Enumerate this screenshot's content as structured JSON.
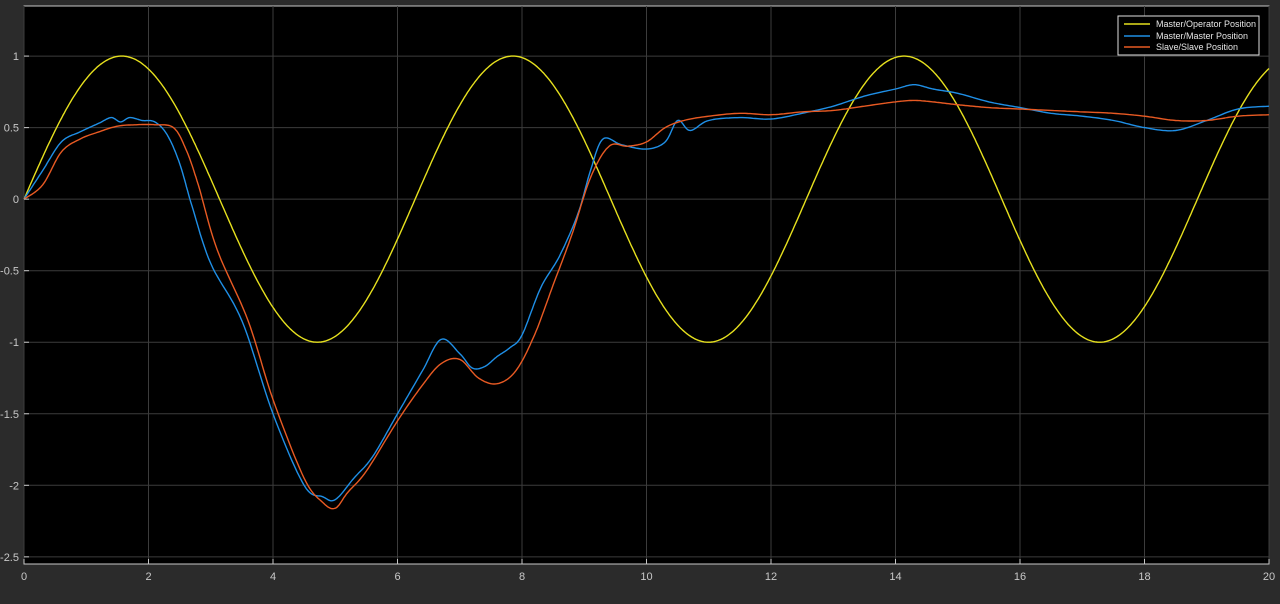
{
  "colors": {
    "background": "#2b2b2b",
    "plot_bg": "#000000",
    "grid": "#3c3c3c",
    "axis": "#c8c8c8",
    "legend_bg": "#000000",
    "legend_border": "#e0e0e0"
  },
  "chart_data": {
    "type": "line",
    "title": "",
    "xlabel": "",
    "ylabel": "",
    "xlim": [
      0,
      20
    ],
    "ylim": [
      -2.55,
      1.35
    ],
    "grid": true,
    "legend_position": "top-right",
    "xticks": [
      0,
      2,
      4,
      6,
      8,
      10,
      12,
      14,
      16,
      18,
      20
    ],
    "yticks": [
      -2.5,
      -2,
      -1.5,
      -1,
      -0.5,
      0,
      0.5,
      1
    ],
    "xtick_labels": [
      "0",
      "2",
      "4",
      "6",
      "8",
      "10",
      "12",
      "14",
      "16",
      "18",
      "20"
    ],
    "ytick_labels": [
      "-2.5",
      "-2",
      "-1.5",
      "-1",
      "-0.5",
      "0",
      "0.5",
      "1"
    ],
    "series": [
      {
        "name": "Master/Operator Position",
        "color": "#e6e01e",
        "function": "sin(t)",
        "x": [
          0,
          0.5,
          1,
          1.57,
          2,
          2.5,
          3,
          3.5,
          4,
          4.71,
          5.5,
          6,
          6.5,
          7,
          7.5,
          7.85,
          8.5,
          9,
          9.5,
          10,
          10.5,
          11,
          11.5,
          12,
          12.5,
          13,
          13.5,
          14.14,
          14.5,
          15,
          15.5,
          16,
          16.5,
          17.28,
          17.5,
          18,
          18.5,
          19,
          19.5,
          20
        ],
        "y": [
          0,
          0.48,
          0.84,
          1.0,
          0.91,
          0.6,
          0.14,
          -0.35,
          -0.76,
          -1.0,
          -0.71,
          -0.28,
          0.22,
          0.66,
          0.94,
          1.0,
          0.8,
          0.41,
          -0.08,
          -0.54,
          -0.88,
          -1.0,
          -0.88,
          -0.54,
          -0.07,
          0.42,
          0.8,
          1.0,
          0.93,
          0.65,
          0.2,
          -0.29,
          -0.71,
          -1.0,
          -0.98,
          -0.75,
          -0.34,
          0.15,
          0.6,
          0.91
        ]
      },
      {
        "name": "Master/Master Position",
        "color": "#1f8fe6",
        "x": [
          0,
          0.3,
          0.6,
          0.9,
          1.2,
          1.4,
          1.55,
          1.7,
          1.9,
          2.1,
          2.3,
          2.5,
          2.7,
          3.0,
          3.5,
          4.0,
          4.5,
          4.8,
          5.0,
          5.3,
          5.6,
          6.0,
          6.4,
          6.7,
          7.0,
          7.2,
          7.4,
          7.6,
          7.8,
          8.0,
          8.3,
          8.6,
          8.9,
          9.1,
          9.3,
          9.6,
          10.0,
          10.3,
          10.5,
          10.7,
          11.0,
          11.5,
          12.0,
          12.5,
          13.0,
          13.5,
          14.0,
          14.3,
          14.6,
          15.0,
          15.5,
          16.0,
          16.5,
          17.0,
          17.5,
          18.0,
          18.5,
          19.0,
          19.5,
          20.0
        ],
        "y": [
          0,
          0.2,
          0.4,
          0.47,
          0.53,
          0.57,
          0.54,
          0.57,
          0.55,
          0.54,
          0.45,
          0.25,
          -0.05,
          -0.45,
          -0.85,
          -1.5,
          -2.0,
          -2.08,
          -2.1,
          -1.95,
          -1.8,
          -1.5,
          -1.2,
          -0.98,
          -1.08,
          -1.18,
          -1.17,
          -1.1,
          -1.04,
          -0.95,
          -0.62,
          -0.4,
          -0.1,
          0.2,
          0.42,
          0.38,
          0.35,
          0.4,
          0.55,
          0.48,
          0.55,
          0.57,
          0.56,
          0.6,
          0.65,
          0.72,
          0.77,
          0.8,
          0.77,
          0.74,
          0.68,
          0.64,
          0.6,
          0.58,
          0.55,
          0.5,
          0.48,
          0.55,
          0.63,
          0.65
        ]
      },
      {
        "name": "Slave/Slave Position",
        "color": "#e85a23",
        "x": [
          0,
          0.3,
          0.6,
          0.9,
          1.2,
          1.5,
          1.8,
          2.1,
          2.4,
          2.6,
          2.8,
          3.1,
          3.6,
          4.0,
          4.5,
          4.8,
          5.0,
          5.2,
          5.5,
          6.0,
          6.4,
          6.7,
          7.0,
          7.3,
          7.6,
          7.9,
          8.2,
          8.5,
          8.8,
          9.1,
          9.4,
          9.7,
          10.0,
          10.3,
          10.6,
          11.0,
          11.5,
          12.0,
          12.5,
          13.0,
          13.5,
          14.0,
          14.3,
          14.6,
          15.0,
          15.5,
          16.0,
          16.5,
          17.0,
          17.5,
          18.0,
          18.5,
          19.0,
          19.5,
          20.0
        ],
        "y": [
          0,
          0.1,
          0.33,
          0.42,
          0.47,
          0.51,
          0.52,
          0.52,
          0.5,
          0.35,
          0.1,
          -0.35,
          -0.85,
          -1.4,
          -1.95,
          -2.12,
          -2.16,
          -2.05,
          -1.9,
          -1.55,
          -1.3,
          -1.15,
          -1.12,
          -1.25,
          -1.29,
          -1.2,
          -0.95,
          -0.6,
          -0.25,
          0.15,
          0.37,
          0.37,
          0.4,
          0.5,
          0.55,
          0.58,
          0.6,
          0.59,
          0.61,
          0.62,
          0.65,
          0.68,
          0.69,
          0.68,
          0.66,
          0.64,
          0.63,
          0.62,
          0.61,
          0.6,
          0.58,
          0.55,
          0.55,
          0.58,
          0.59
        ]
      }
    ]
  }
}
